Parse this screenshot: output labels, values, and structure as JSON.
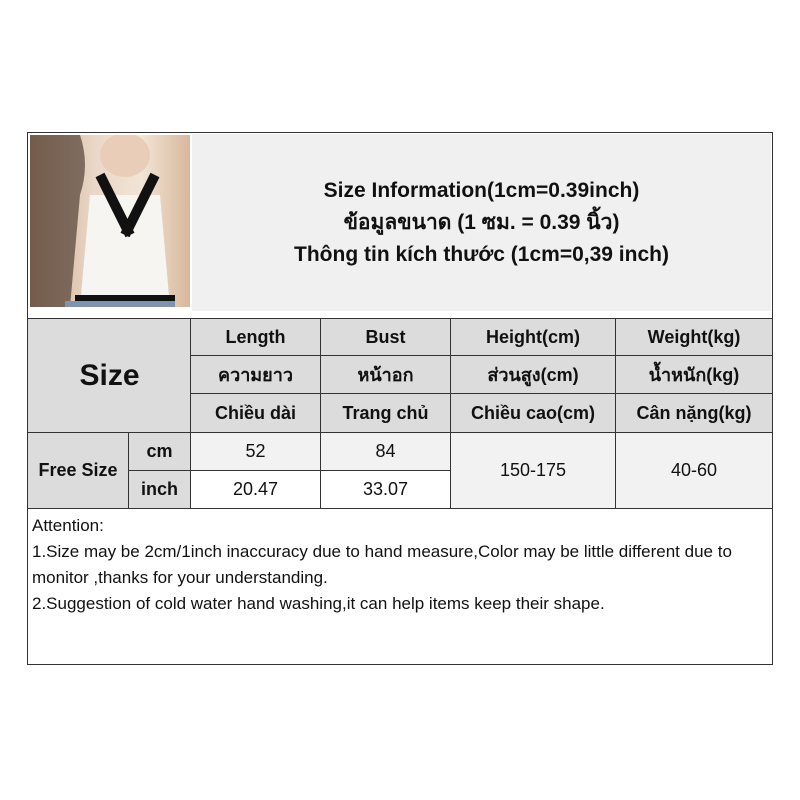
{
  "title": {
    "line1": "Size Information(1cm=0.39inch)",
    "line2": "ข้อมูลขนาด (1 ซม. = 0.39 นิ้ว)",
    "line3": "Thông tin kích thước (1cm=0,39 inch)"
  },
  "table": {
    "size_label": "Size",
    "headers": [
      {
        "en": "Length",
        "th": "ความยาว",
        "vi": "Chiều dài"
      },
      {
        "en": "Bust",
        "th": "หน้าอก",
        "vi": "Trang chủ"
      },
      {
        "en": "Height(cm)",
        "th": "ส่วนสูง(cm)",
        "vi": "Chiều cao(cm)"
      },
      {
        "en": "Weight(kg)",
        "th": "น้ำหนัก(kg)",
        "vi": "Cân nặng(kg)"
      }
    ],
    "row_label": "Free Size",
    "units": [
      "cm",
      "inch"
    ],
    "cm": {
      "length": "52",
      "bust": "84"
    },
    "inch": {
      "length": "20.47",
      "bust": "33.07"
    },
    "height": "150-175",
    "weight": "40-60"
  },
  "notes": {
    "heading": "Attention:",
    "line1": "1.Size may be 2cm/1inch inaccuracy due to hand measure,Color may be little different due to monitor ,thanks for your understanding.",
    "line2": "2.Suggestion of cold water hand washing,it can help items keep their shape."
  }
}
